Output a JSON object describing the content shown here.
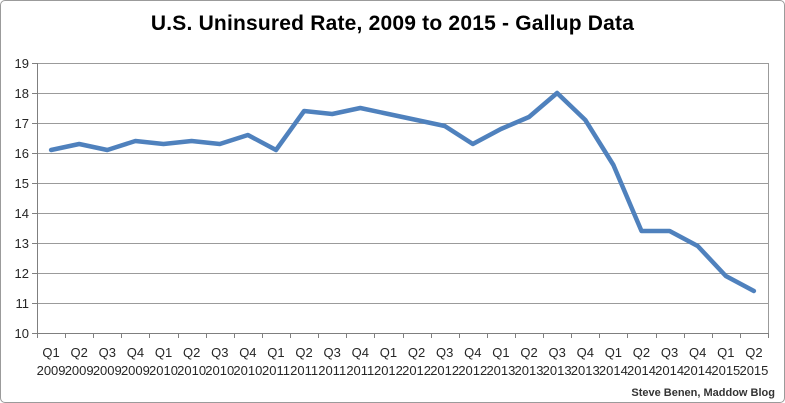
{
  "title": "U.S. Uninsured Rate, 2009 to 2015 - Gallup Data",
  "credit": "Steve Benen, Maddow Blog",
  "chart_data": {
    "type": "line",
    "title": "U.S. Uninsured Rate, 2009 to 2015 - Gallup Data",
    "categories": [
      "Q1 2009",
      "Q2 2009",
      "Q3 2009",
      "Q4 2009",
      "Q1 2010",
      "Q2 2010",
      "Q3 2010",
      "Q4 2010",
      "Q1 2011",
      "Q2 2011",
      "Q3 2011",
      "Q4 2011",
      "Q1 2012",
      "Q2 2012",
      "Q3 2012",
      "Q4 2012",
      "Q1 2013",
      "Q2 2013",
      "Q3 2013",
      "Q4 2013",
      "Q1 2014",
      "Q2 2014",
      "Q3 2014",
      "Q4 2014",
      "Q1 2015",
      "Q2 2015"
    ],
    "series": [
      {
        "name": "U.S. uninsured rate (%)",
        "color": "#4F81BD",
        "values": [
          16.1,
          16.3,
          16.1,
          16.4,
          16.3,
          16.4,
          16.3,
          16.6,
          16.1,
          17.4,
          17.3,
          17.5,
          17.3,
          17.1,
          16.9,
          16.3,
          16.8,
          17.2,
          18.0,
          17.1,
          15.6,
          13.4,
          13.4,
          12.9,
          11.9,
          11.4
        ]
      }
    ],
    "xlabel": "",
    "ylabel": "",
    "ylim": [
      10,
      19
    ],
    "ytick_step": 1,
    "grid": true,
    "legend_position": "none",
    "source_note": "Steve Benen, Maddow Blog"
  },
  "style": {
    "line_color": "#4F81BD",
    "grid_color": "#9b9b9b",
    "axis_color": "#7f7f7f",
    "label_color": "#262626",
    "title_color": "#000000",
    "background": "#ffffff"
  }
}
